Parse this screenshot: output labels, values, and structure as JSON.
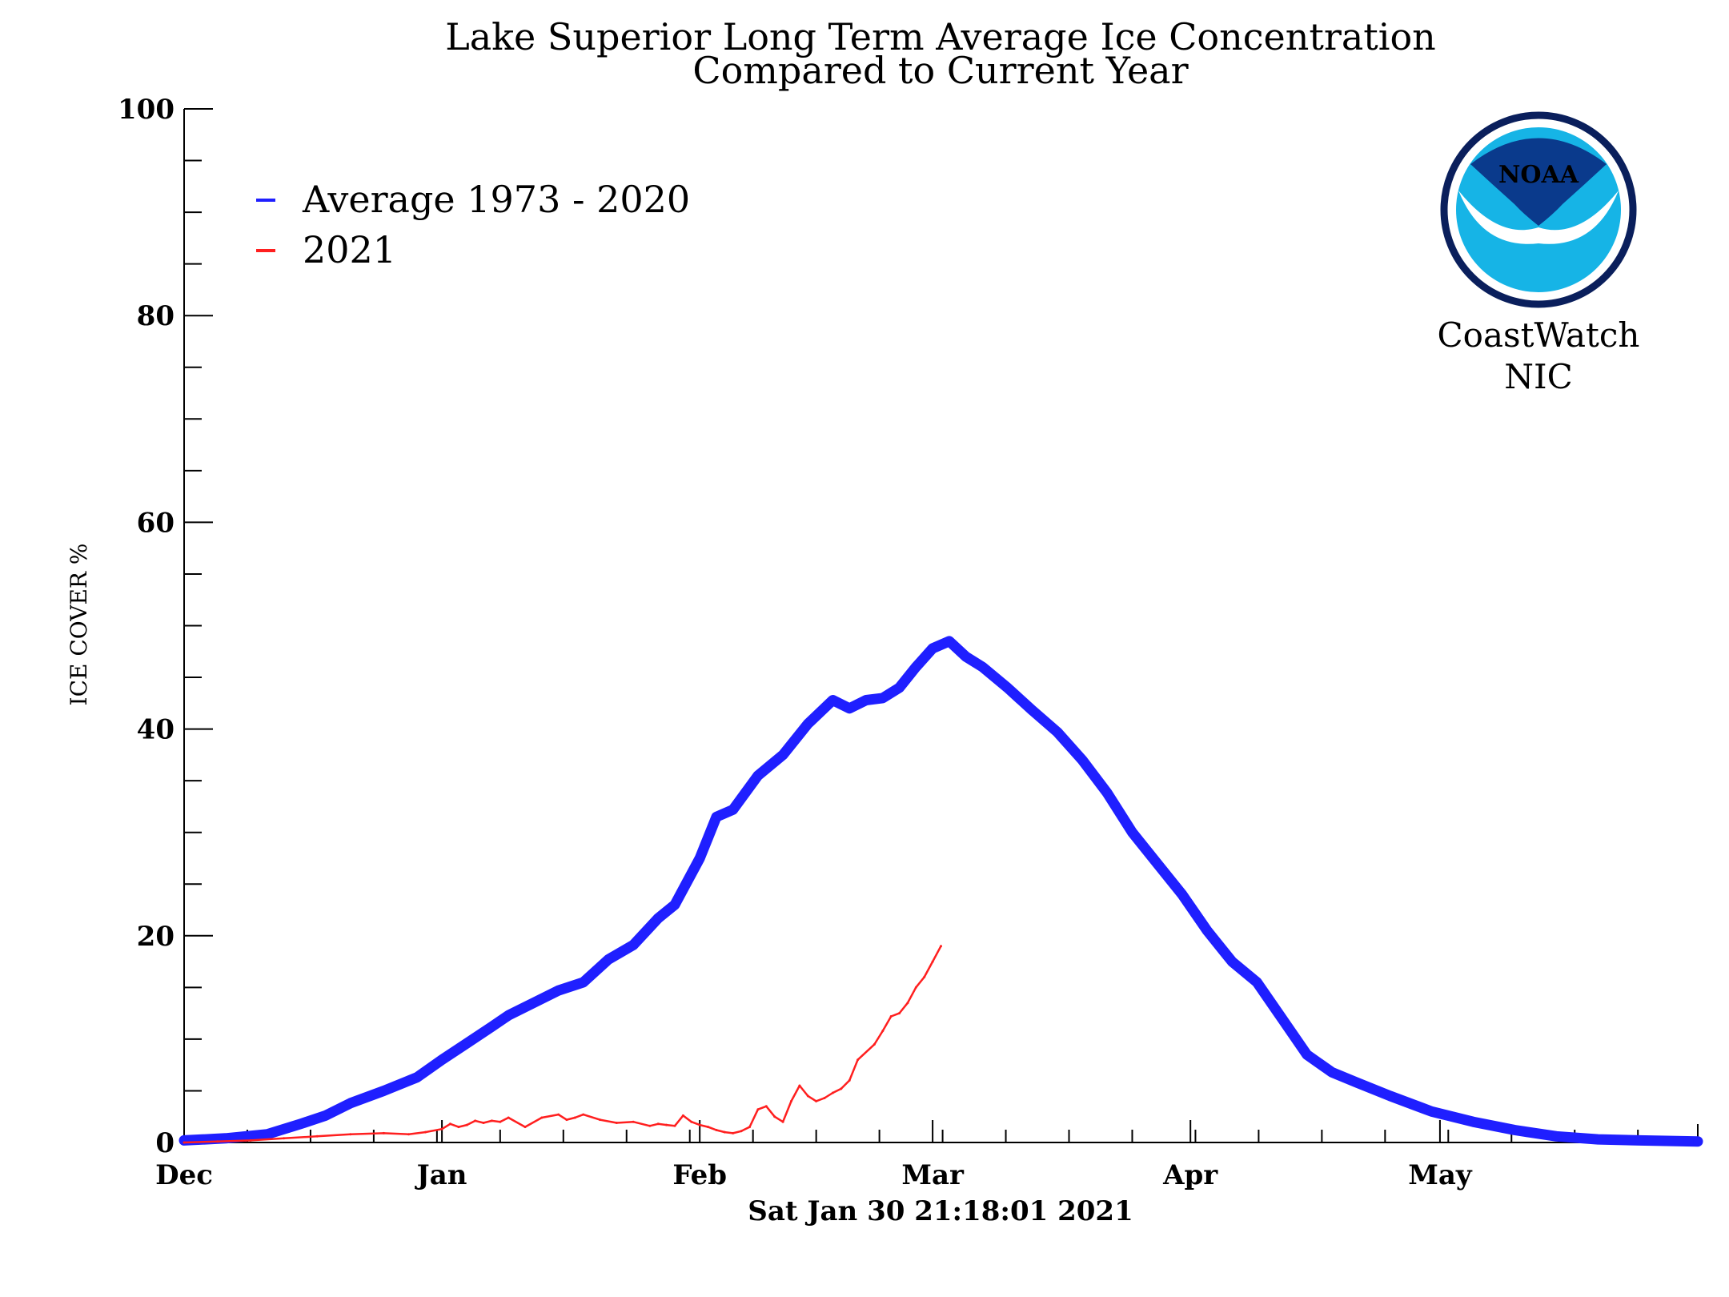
{
  "chart_data": {
    "type": "line",
    "title": "Lake Superior Long Term Average Ice Concentration",
    "subtitle": "Compared to Current Year",
    "xlabel": "Sat Jan 30 21:18:01 2021",
    "ylabel": "ICE COVER %",
    "ylim": [
      0,
      100
    ],
    "xlim": [
      0,
      182
    ],
    "y_ticks": [
      "0",
      "20",
      "40",
      "60",
      "80",
      "100"
    ],
    "x_month_labels": [
      "Dec",
      "Jan",
      "Feb",
      "Mar",
      "Apr",
      "May"
    ],
    "x_month_days": [
      0,
      31,
      62,
      90,
      121,
      151
    ],
    "legend_position": "top-left",
    "series": [
      {
        "name": "Average 1973 - 2020",
        "color": "#1f1fff",
        "x": [
          0,
          5,
          10,
          14,
          17,
          20,
          24,
          28,
          31,
          34,
          37,
          39,
          42,
          45,
          48,
          51,
          54,
          57,
          59,
          62,
          64,
          66,
          69,
          72,
          75,
          78,
          80,
          82,
          84,
          86,
          88,
          90,
          92,
          94,
          96,
          99,
          102,
          105,
          108,
          111,
          114,
          117,
          120,
          123,
          126,
          129,
          132,
          135,
          138,
          141,
          145,
          150,
          155,
          160,
          165,
          170,
          175,
          182
        ],
        "values": [
          0.2,
          0.4,
          0.8,
          1.8,
          2.6,
          3.8,
          5.0,
          6.3,
          8.0,
          9.6,
          11.2,
          12.3,
          13.5,
          14.7,
          15.5,
          17.7,
          19.1,
          21.7,
          23.0,
          27.5,
          31.5,
          32.2,
          35.5,
          37.5,
          40.5,
          42.8,
          42.0,
          42.8,
          43.0,
          44.0,
          46.0,
          47.8,
          48.5,
          47.0,
          46.0,
          44.0,
          41.8,
          39.7,
          37.0,
          33.8,
          30.0,
          27.0,
          24.0,
          20.5,
          17.5,
          15.5,
          12.0,
          8.5,
          6.8,
          5.8,
          4.5,
          3.0,
          2.0,
          1.2,
          0.6,
          0.3,
          0.2,
          0.1
        ]
      },
      {
        "name": "2021",
        "color": "#ff1f1f",
        "x": [
          0,
          4,
          8,
          12,
          16,
          20,
          24,
          27,
          29,
          31,
          32,
          33,
          34,
          35,
          36,
          37,
          38,
          39,
          41,
          43,
          45,
          46,
          47,
          48,
          50,
          52,
          54,
          56,
          57,
          58,
          59,
          60,
          61,
          62,
          63,
          64,
          65,
          66,
          67,
          68,
          69,
          70,
          71,
          72,
          73,
          74,
          75,
          76,
          77,
          78,
          79,
          80,
          81,
          83,
          84,
          85,
          86,
          87,
          88,
          89,
          90,
          91
        ],
        "values": [
          0.0,
          0.1,
          0.2,
          0.4,
          0.6,
          0.8,
          0.9,
          0.8,
          1.0,
          1.3,
          1.8,
          1.5,
          1.7,
          2.1,
          1.9,
          2.1,
          2.0,
          2.4,
          1.5,
          2.4,
          2.7,
          2.2,
          2.4,
          2.7,
          2.2,
          1.9,
          2.0,
          1.6,
          1.8,
          1.7,
          1.6,
          2.6,
          2.0,
          1.7,
          1.5,
          1.2,
          1.0,
          0.9,
          1.1,
          1.5,
          3.2,
          3.5,
          2.5,
          2.0,
          4.0,
          5.5,
          4.5,
          4.0,
          4.3,
          4.8,
          5.2,
          6.0,
          8.0,
          9.5,
          10.8,
          12.2,
          12.5,
          13.5,
          15.0,
          16.0,
          17.5,
          19.0
        ]
      }
    ]
  },
  "logo": {
    "badge_text": "NOAA",
    "line1": "CoastWatch",
    "line2": "NIC"
  }
}
